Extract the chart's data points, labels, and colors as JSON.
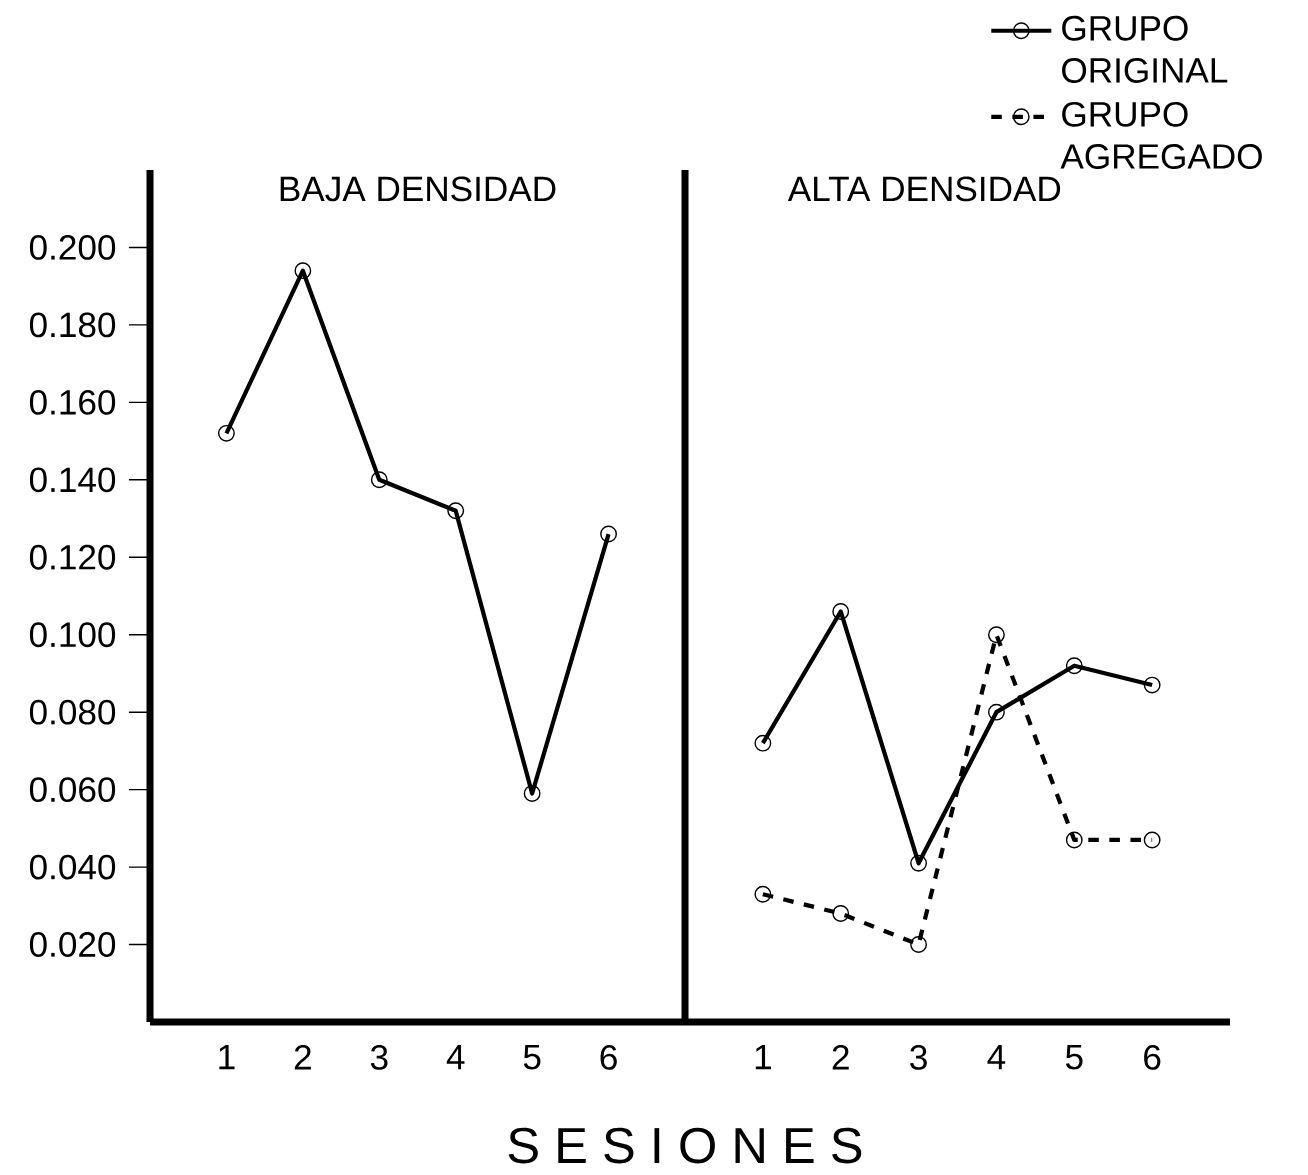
{
  "chart_data": [
    {
      "type": "line",
      "title": "BAJA DENSIDAD",
      "xlabel": "S E S I O N E S",
      "categories": [
        "1",
        "2",
        "3",
        "4",
        "5",
        "6"
      ],
      "series": [
        {
          "color": "#000000",
          "values": [
            0.152,
            0.194,
            0.14,
            0.132,
            0.059,
            0.126
          ],
          "line_style": "solid"
        }
      ],
      "ylim": [
        0,
        0.22
      ],
      "yticks": [
        {
          "value": 0.02,
          "label": "0.020"
        },
        {
          "value": 0.04,
          "label": "0.040"
        },
        {
          "value": 0.06,
          "label": "0.060"
        },
        {
          "value": 0.08,
          "label": "0.080"
        },
        {
          "value": 0.1,
          "label": "0.100"
        },
        {
          "value": 0.12,
          "label": "0.120"
        },
        {
          "value": 0.14,
          "label": "0.140"
        },
        {
          "value": 0.16,
          "label": "0.160"
        },
        {
          "value": 0.18,
          "label": "0.180"
        },
        {
          "value": 0.2,
          "label": "0.200"
        }
      ],
      "marker": "circle"
    },
    {
      "type": "line",
      "title": "ALTA DENSIDAD",
      "categories": [
        "1",
        "2",
        "3",
        "4",
        "5",
        "6"
      ],
      "series": [
        {
          "name": "GRUPO ORIGINAL",
          "color": "#000000",
          "values": [
            0.072,
            0.106,
            0.041,
            0.08,
            0.092,
            0.087
          ],
          "line_style": "solid"
        },
        {
          "name": "GRUPO AGREGADO",
          "color": "#000000",
          "values": [
            0.033,
            0.028,
            0.02,
            0.1,
            0.047,
            0.047
          ],
          "line_style": "dashed"
        }
      ],
      "ylim": [
        0,
        0.22
      ],
      "tick_labels": "x",
      "marker": "circle",
      "legend": "top right"
    }
  ]
}
